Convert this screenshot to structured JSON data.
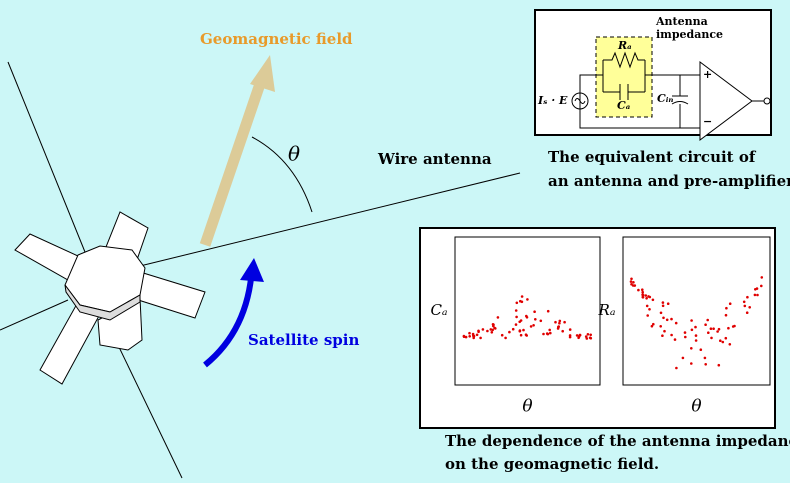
{
  "labels": {
    "geomagnetic_field": "Geomagnetic field",
    "theta": "θ",
    "wire_antenna": "Wire antenna",
    "satellite_spin": "Satellite spin"
  },
  "circuit": {
    "title_lines": [
      "Antenna",
      "impedance"
    ],
    "ra": "Rₐ",
    "ca": "Cₐ",
    "cin": "Cᵢₙ",
    "source": "Iₛ · E",
    "plus": "+",
    "minus": "−",
    "caption_lines": [
      "The equivalent circuit of",
      "an antenna and pre-amplifier."
    ]
  },
  "plots": {
    "panels": [
      {
        "y_label": "Cₐ",
        "x_label": "θ"
      },
      {
        "y_label": "Rₐ",
        "x_label": "θ"
      }
    ],
    "caption_lines": [
      "The dependence of the antenna impedance",
      "on the geomagnetic field."
    ]
  }
}
